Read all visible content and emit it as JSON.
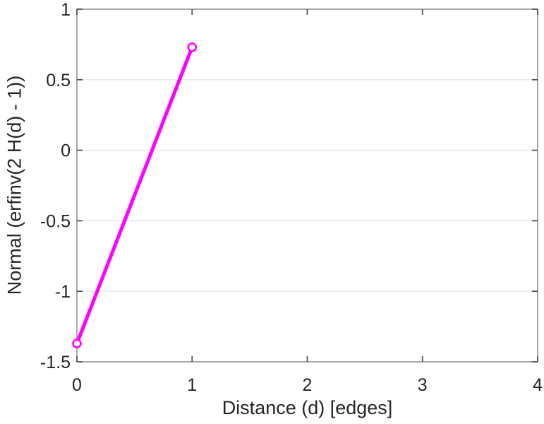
{
  "chart_data": {
    "type": "line",
    "title": "",
    "xlabel": "Distance (d) [edges]",
    "ylabel": "Normal (erfinv(2 H(d) - 1))",
    "x": [
      0,
      1
    ],
    "y": [
      -1.37,
      0.73
    ],
    "xlim": [
      0,
      4
    ],
    "ylim": [
      -1.5,
      1
    ],
    "xticks": [
      0,
      1,
      2,
      3,
      4
    ],
    "yticks": [
      -1.5,
      -1,
      -0.5,
      0,
      0.5,
      1
    ],
    "xtick_labels": [
      "0",
      "1",
      "2",
      "3",
      "4"
    ],
    "ytick_labels": [
      "-1.5",
      "-1",
      "-0.5",
      "0",
      "0.5",
      "1"
    ],
    "grid": "horizontal-only",
    "legend": "none",
    "line_color": "#ff00ff",
    "marker": "circle-open",
    "marker_fill": "#ffffff",
    "grid_color": "#ebebeb",
    "box_color": "#8c8c8c",
    "tick_color": "#545454",
    "text_color": "#262626",
    "background_color": "#ffffff"
  }
}
